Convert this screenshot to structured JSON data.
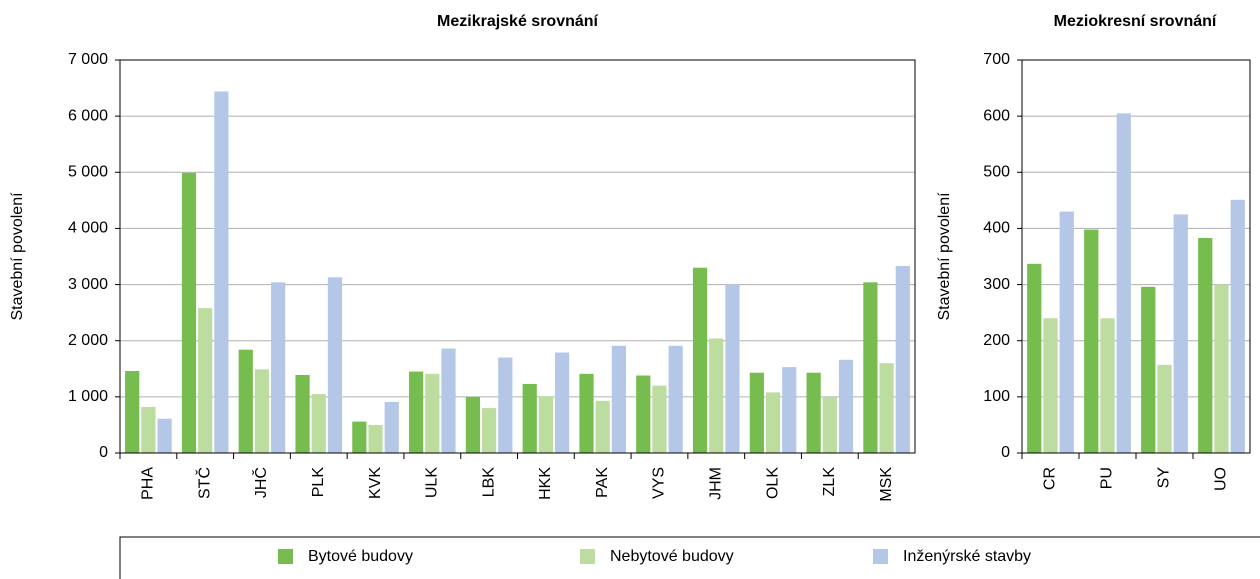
{
  "chart_data": [
    {
      "type": "bar",
      "title": "Mezikrajské srovnání",
      "y_label": "Stavební povolení",
      "categories": [
        "PHA",
        "STČ",
        "JHČ",
        "PLK",
        "KVK",
        "ULK",
        "LBK",
        "HKK",
        "PAK",
        "VYS",
        "JHM",
        "OLK",
        "ZLK",
        "MSK"
      ],
      "series": [
        {
          "name": "Bytové budovy",
          "color": "#77bc4f",
          "values": [
            1460,
            4990,
            1840,
            1390,
            560,
            1450,
            1000,
            1230,
            1410,
            1380,
            3300,
            1430,
            1430,
            3040
          ]
        },
        {
          "name": "Nebytové budovy",
          "color": "#bcdca0",
          "values": [
            820,
            2580,
            1490,
            1050,
            500,
            1410,
            800,
            1010,
            930,
            1200,
            2040,
            1080,
            1000,
            1600
          ]
        },
        {
          "name": "Inženýrské stavby",
          "color": "#b4c7e7",
          "values": [
            610,
            6440,
            3040,
            3130,
            910,
            1860,
            1700,
            1790,
            1910,
            1910,
            3000,
            1530,
            1660,
            3330
          ]
        }
      ],
      "ylim": [
        0,
        7000
      ],
      "yticks": [
        0,
        {
          "value": 1000,
          "label": "1 000"
        },
        {
          "value": 2000,
          "label": "2 000"
        },
        {
          "value": 3000,
          "label": "3 000"
        },
        {
          "value": 4000,
          "label": "4 000"
        },
        {
          "value": 5000,
          "label": "5 000"
        },
        {
          "value": 6000,
          "label": "6 000"
        },
        {
          "value": 7000,
          "label": "7 000"
        }
      ],
      "grid": true
    },
    {
      "type": "bar",
      "title": "Meziokresní srovnání",
      "y_label": "Stavební povolení",
      "categories": [
        "CR",
        "PU",
        "SY",
        "UO"
      ],
      "series": [
        {
          "name": "Bytové budovy",
          "color": "#77bc4f",
          "values": [
            337,
            398,
            296,
            383
          ]
        },
        {
          "name": "Nebytové budovy",
          "color": "#bcdca0",
          "values": [
            240,
            240,
            157,
            300
          ]
        },
        {
          "name": "Inženýrské stavby",
          "color": "#b4c7e7",
          "values": [
            430,
            605,
            425,
            451
          ]
        }
      ],
      "ylim": [
        0,
        700
      ],
      "yticks": [
        0,
        100,
        200,
        300,
        400,
        500,
        600,
        700
      ],
      "grid": true
    }
  ]
}
